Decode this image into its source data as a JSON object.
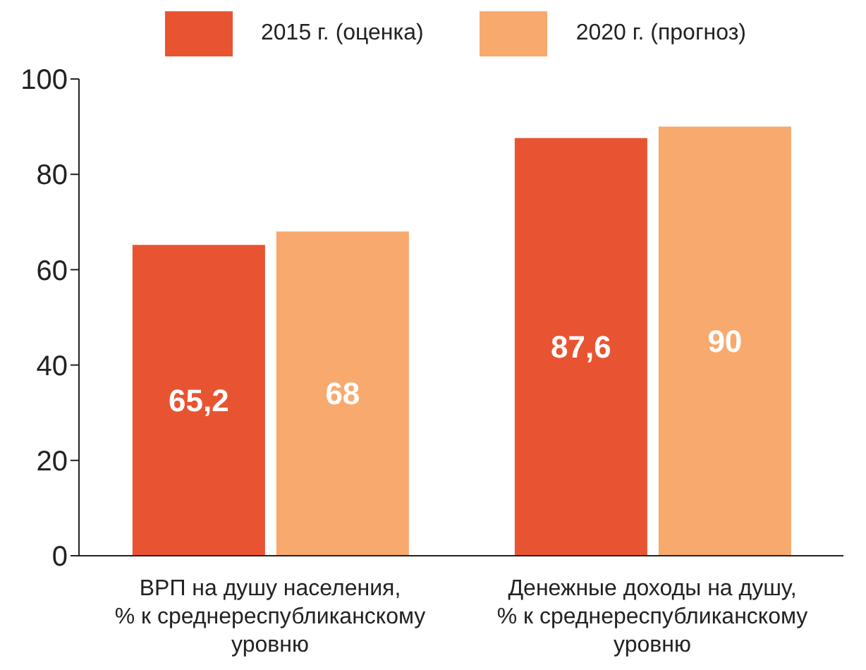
{
  "chart_data": {
    "type": "bar",
    "categories": [
      "ВРП на душу населения, % к среднереспубликанскому уровню",
      "Денежные доходы на душу, % к среднереспубликанскому уровню"
    ],
    "series": [
      {
        "name": "2015 г. (оценка)",
        "color": "#e85431",
        "values": [
          65.2,
          87.6
        ],
        "value_labels": [
          "65,2",
          "87,6"
        ]
      },
      {
        "name": "2020 г. (прогноз)",
        "color": "#f8a96e",
        "values": [
          68,
          90
        ],
        "value_labels": [
          "68",
          "90"
        ]
      }
    ],
    "ylim": [
      0,
      100
    ],
    "yticks": [
      0,
      20,
      40,
      60,
      80,
      100
    ],
    "grid": false,
    "legend": "top"
  }
}
